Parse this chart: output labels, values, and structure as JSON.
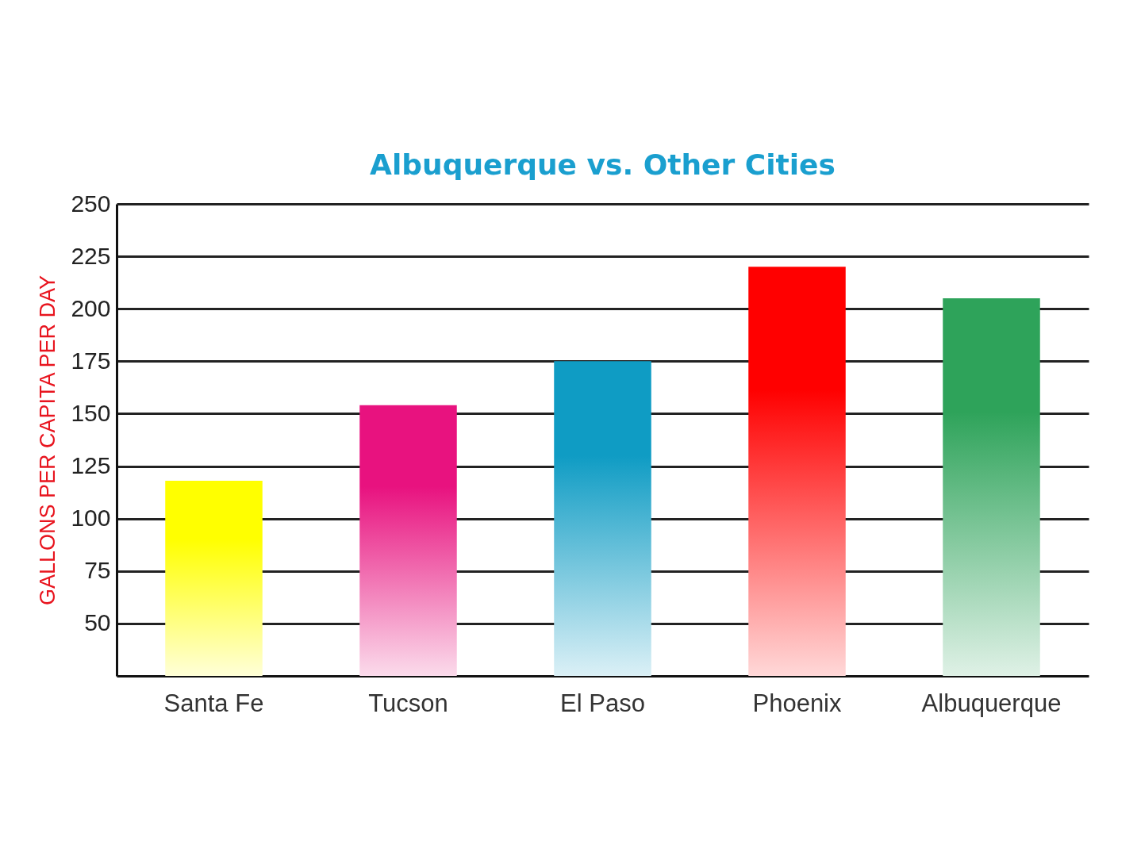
{
  "chart_data": {
    "type": "bar",
    "title": "Albuquerque vs. Other Cities",
    "ylabel": "GALLONS PER CAPITA PER DAY",
    "categories": [
      "Santa Fe",
      "Tucson",
      "El Paso",
      "Phoenix",
      "Albuquerque"
    ],
    "values": [
      118,
      154,
      175,
      220,
      205
    ],
    "colors": [
      "#ffff00",
      "#e8127f",
      "#0f9cc4",
      "#ff0000",
      "#2ea35a"
    ],
    "ylim": [
      25,
      250
    ],
    "yticks": [
      50,
      75,
      100,
      125,
      150,
      175,
      200,
      225,
      250
    ],
    "grid": "y"
  }
}
